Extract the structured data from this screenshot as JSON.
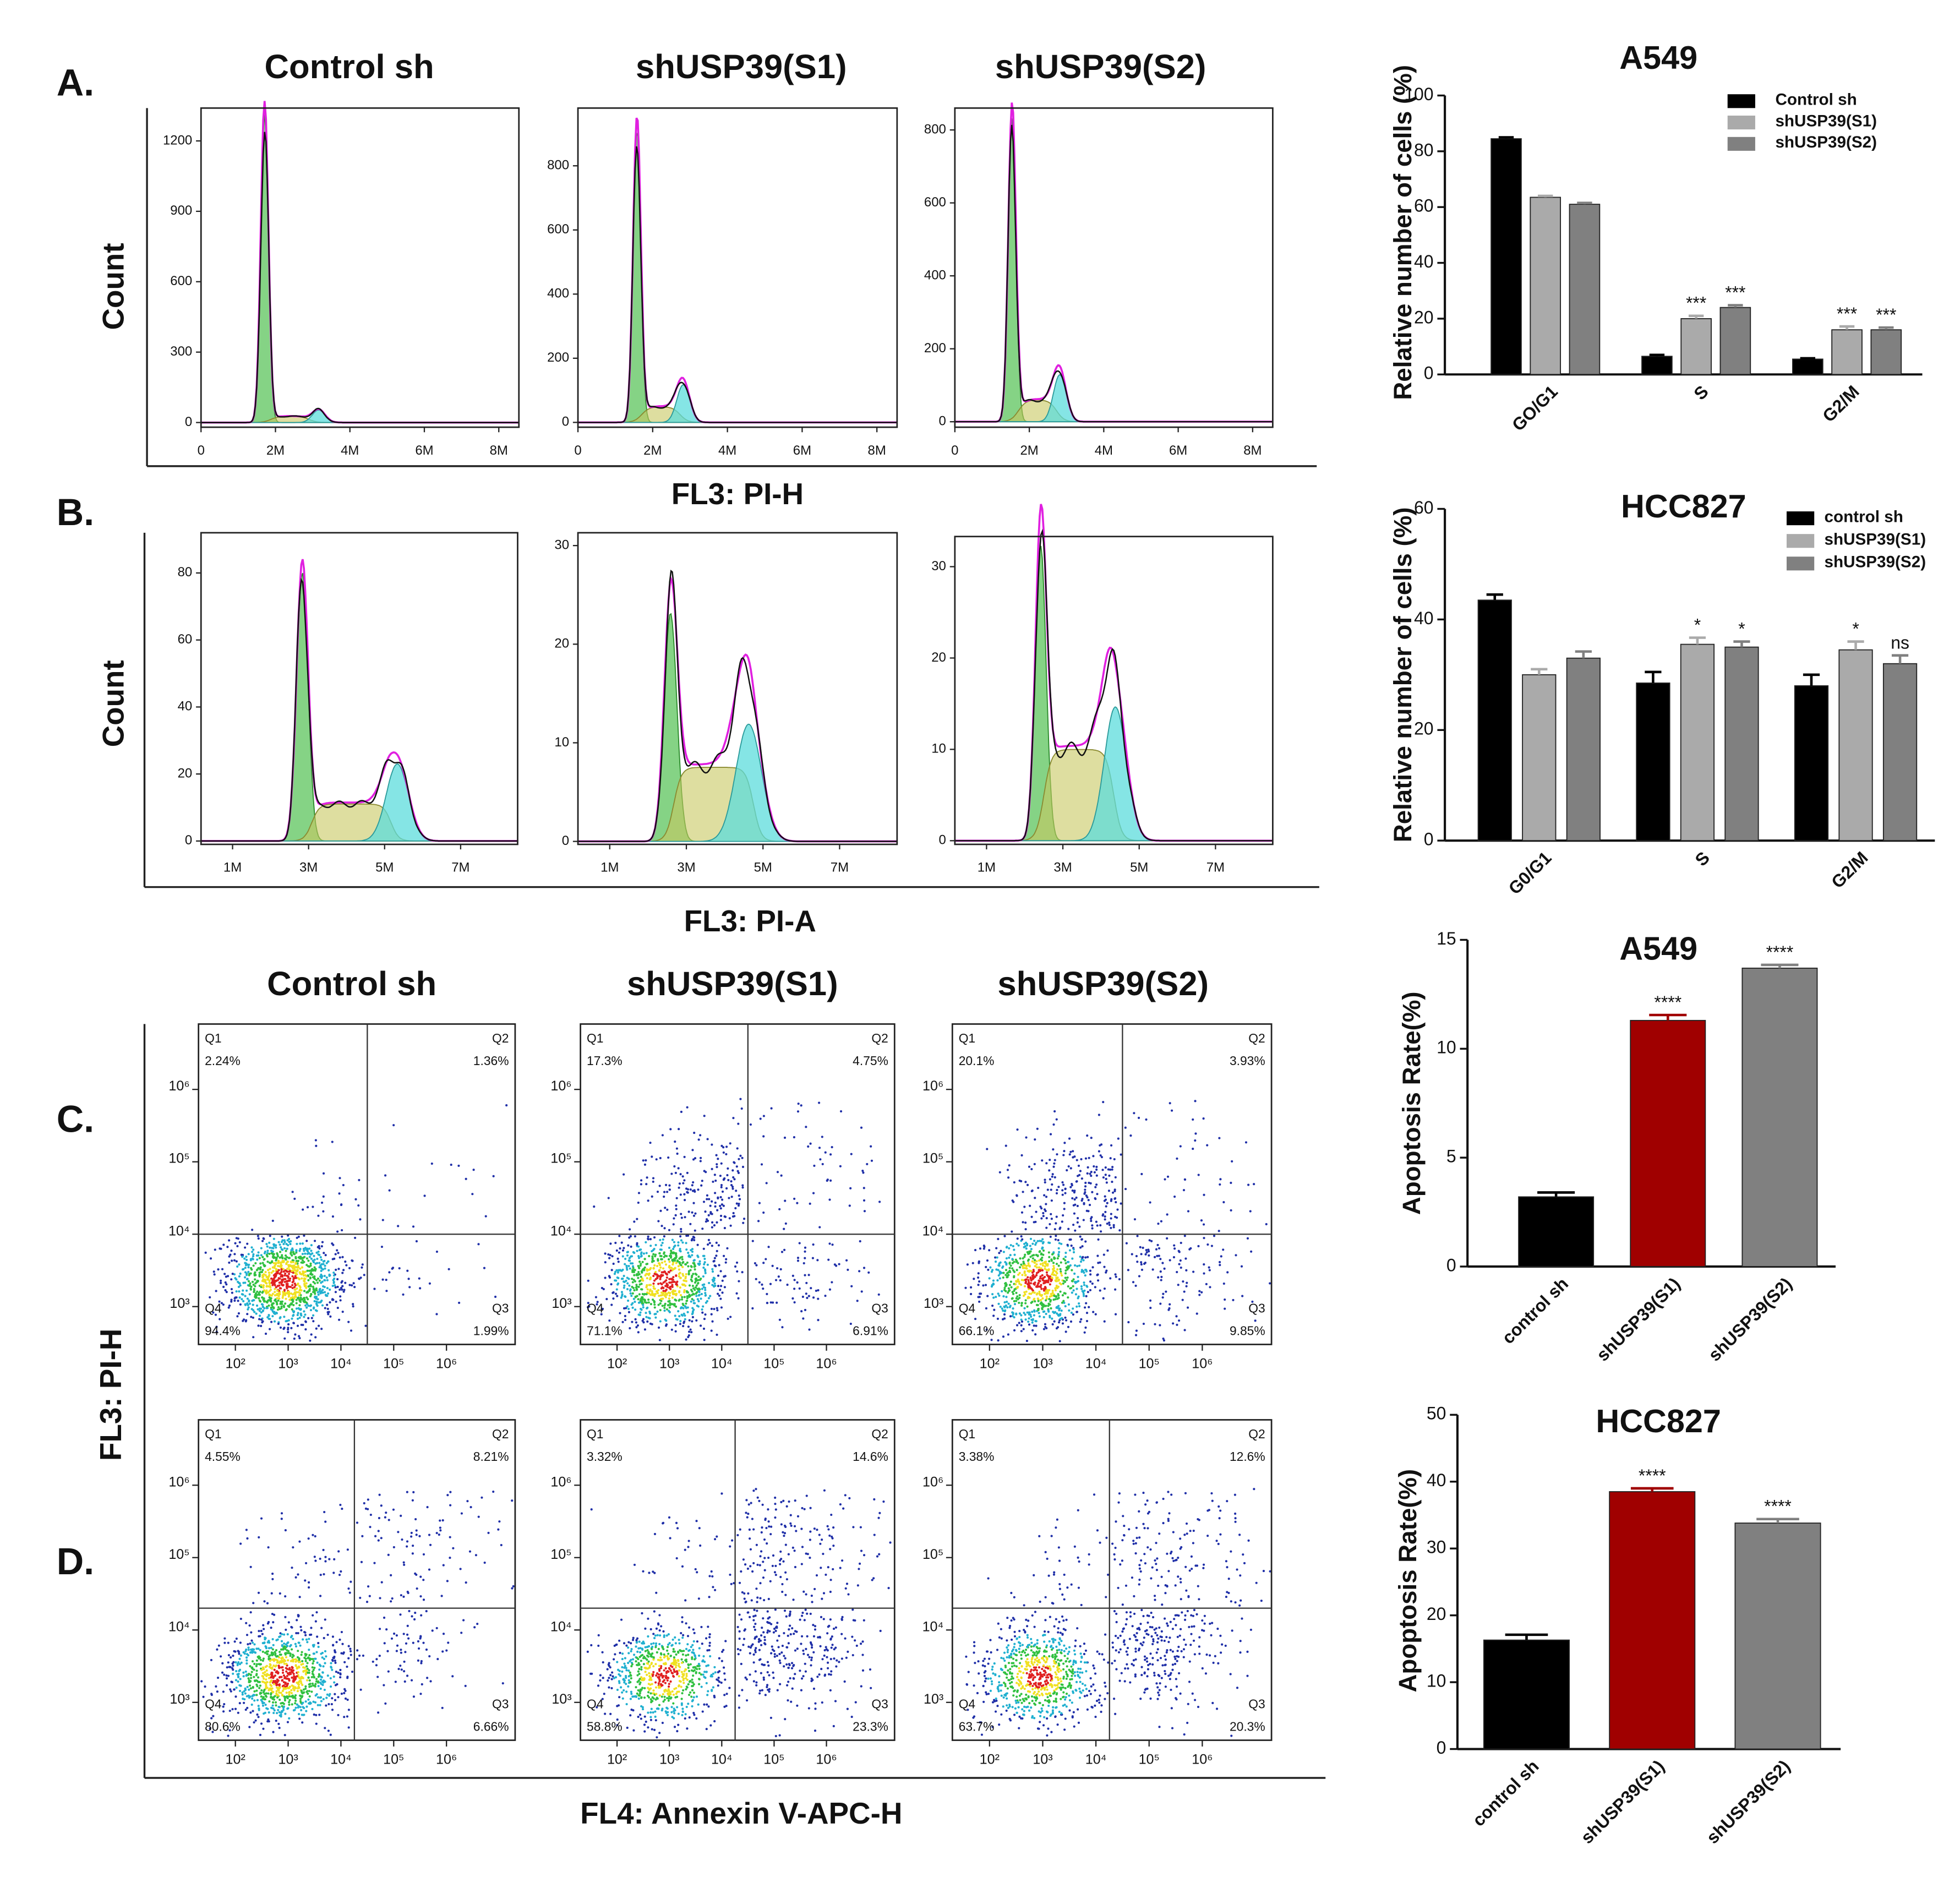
{
  "figure": {
    "panel_labels": [
      "A.",
      "B.",
      "C.",
      "D."
    ],
    "histogram_titles": [
      "Control sh",
      "shUSP39(S1)",
      "shUSP39(S2)"
    ],
    "scatter_titles": [
      "Control sh",
      "shUSP39(S1)",
      "shUSP39(S2)"
    ],
    "count_labels": [
      "Count",
      "Count"
    ],
    "x_labels": [
      "FL3: PI-H",
      "FL3: PI-A",
      "FL4: Annexin V-APC-H"
    ],
    "scatter_y_label": "FL3: PI-H"
  },
  "chart_data": [
    {
      "type": "flow-histogram",
      "xlim": [
        0,
        8540000
      ],
      "xticks": [
        0,
        {
          "value": 2000000,
          "label": "2M"
        },
        {
          "value": 4000000,
          "label": "4M"
        },
        {
          "value": 6000000,
          "label": "6M"
        },
        {
          "value": 8000000,
          "label": "8M"
        }
      ],
      "ylim": [
        -20,
        1340
      ],
      "yticks": [
        0,
        300,
        600,
        900,
        1200
      ]
    },
    {
      "type": "flow-histogram",
      "xlim": [
        0,
        8540000
      ],
      "xticks": [
        0,
        {
          "value": 2000000,
          "label": "2M"
        },
        {
          "value": 4000000,
          "label": "4M"
        },
        {
          "value": 6000000,
          "label": "6M"
        },
        {
          "value": 8000000,
          "label": "8M"
        }
      ],
      "ylim": [
        -15,
        980
      ],
      "yticks": [
        0,
        200,
        400,
        600,
        800
      ]
    },
    {
      "type": "flow-histogram",
      "xlim": [
        0,
        8540000
      ],
      "xticks": [
        0,
        {
          "value": 2000000,
          "label": "2M"
        },
        {
          "value": 4000000,
          "label": "4M"
        },
        {
          "value": 6000000,
          "label": "6M"
        },
        {
          "value": 8000000,
          "label": "8M"
        }
      ],
      "ylim": [
        -15,
        860
      ],
      "yticks": [
        0,
        200,
        400,
        600,
        800
      ]
    },
    {
      "type": "flow-histogram",
      "xlim": [
        170000,
        8500000
      ],
      "xticks": [
        {
          "value": 1000000,
          "label": "1M"
        },
        {
          "value": 3000000,
          "label": "3M"
        },
        {
          "value": 5000000,
          "label": "5M"
        },
        {
          "value": 7000000,
          "label": "7M"
        }
      ],
      "ylim": [
        -1,
        92
      ],
      "yticks": [
        0,
        20,
        40,
        60,
        80
      ]
    },
    {
      "type": "flow-histogram",
      "xlim": [
        170000,
        8500000
      ],
      "xticks": [
        {
          "value": 1000000,
          "label": "1M"
        },
        {
          "value": 3000000,
          "label": "3M"
        },
        {
          "value": 5000000,
          "label": "5M"
        },
        {
          "value": 7000000,
          "label": "7M"
        }
      ],
      "ylim": [
        -0.3,
        31.3
      ],
      "yticks": [
        0,
        10,
        20,
        30
      ]
    },
    {
      "type": "flow-histogram",
      "xlim": [
        170000,
        8500000
      ],
      "xticks": [
        {
          "value": 1000000,
          "label": "1M"
        },
        {
          "value": 3000000,
          "label": "3M"
        },
        {
          "value": 5000000,
          "label": "5M"
        },
        {
          "value": 7000000,
          "label": "7M"
        }
      ],
      "ylim": [
        -0.4,
        33.3
      ],
      "yticks": [
        0,
        10,
        20,
        30
      ]
    },
    {
      "type": "flow-scatter",
      "log_x": true,
      "log_y": true,
      "xlim": [
        20,
        20000000
      ],
      "ylim": [
        300,
        8000000
      ],
      "xticks": [
        {
          "value": 100,
          "label": "10²"
        },
        {
          "value": 1000,
          "label": "10³"
        },
        {
          "value": 10000,
          "label": "10⁴"
        },
        {
          "value": 100000,
          "label": "10⁵"
        },
        {
          "value": 1000000,
          "label": "10⁶"
        }
      ],
      "yticks": [
        {
          "value": 1000,
          "label": "10³"
        },
        {
          "value": 10000,
          "label": "10⁴"
        },
        {
          "value": 100000,
          "label": "10⁵"
        },
        {
          "value": 1000000,
          "label": "10⁶"
        }
      ],
      "gate_x": 31600,
      "gate_y": 10000,
      "quadrants": [
        "Q1",
        "Q2",
        "Q3",
        "Q4"
      ],
      "values": [
        2.24,
        1.36,
        1.99,
        94.4
      ],
      "value_labels": [
        "2.24%",
        "1.36%",
        "1.99%",
        "94.4%"
      ]
    },
    {
      "type": "flow-scatter",
      "log_x": true,
      "log_y": true,
      "xlim": [
        20,
        20000000
      ],
      "ylim": [
        300,
        8000000
      ],
      "xticks": [
        {
          "value": 100,
          "label": "10²"
        },
        {
          "value": 1000,
          "label": "10³"
        },
        {
          "value": 10000,
          "label": "10⁴"
        },
        {
          "value": 100000,
          "label": "10⁵"
        },
        {
          "value": 1000000,
          "label": "10⁶"
        }
      ],
      "yticks": [
        {
          "value": 1000,
          "label": "10³"
        },
        {
          "value": 10000,
          "label": "10⁴"
        },
        {
          "value": 100000,
          "label": "10⁵"
        },
        {
          "value": 1000000,
          "label": "10⁶"
        }
      ],
      "gate_x": 31600,
      "gate_y": 10000,
      "quadrants": [
        "Q1",
        "Q2",
        "Q3",
        "Q4"
      ],
      "values": [
        17.3,
        4.75,
        6.91,
        71.1
      ],
      "value_labels": [
        "17.3%",
        "4.75%",
        "6.91%",
        "71.1%"
      ]
    },
    {
      "type": "flow-scatter",
      "log_x": true,
      "log_y": true,
      "xlim": [
        20,
        20000000
      ],
      "ylim": [
        300,
        8000000
      ],
      "xticks": [
        {
          "value": 100,
          "label": "10²"
        },
        {
          "value": 1000,
          "label": "10³"
        },
        {
          "value": 10000,
          "label": "10⁴"
        },
        {
          "value": 100000,
          "label": "10⁵"
        },
        {
          "value": 1000000,
          "label": "10⁶"
        }
      ],
      "yticks": [
        {
          "value": 1000,
          "label": "10³"
        },
        {
          "value": 10000,
          "label": "10⁴"
        },
        {
          "value": 100000,
          "label": "10⁵"
        },
        {
          "value": 1000000,
          "label": "10⁶"
        }
      ],
      "gate_x": 31600,
      "gate_y": 10000,
      "quadrants": [
        "Q1",
        "Q2",
        "Q3",
        "Q4"
      ],
      "values": [
        20.1,
        3.93,
        9.85,
        66.1
      ],
      "value_labels": [
        "20.1%",
        "3.93%",
        "9.85%",
        "66.1%"
      ]
    },
    {
      "type": "flow-scatter",
      "log_x": true,
      "log_y": true,
      "xlim": [
        20,
        20000000
      ],
      "ylim": [
        300,
        8000000
      ],
      "xticks": [
        {
          "value": 100,
          "label": "10²"
        },
        {
          "value": 1000,
          "label": "10³"
        },
        {
          "value": 10000,
          "label": "10⁴"
        },
        {
          "value": 100000,
          "label": "10⁵"
        },
        {
          "value": 1000000,
          "label": "10⁶"
        }
      ],
      "yticks": [
        {
          "value": 1000,
          "label": "10³"
        },
        {
          "value": 10000,
          "label": "10⁴"
        },
        {
          "value": 100000,
          "label": "10⁵"
        },
        {
          "value": 1000000,
          "label": "10⁶"
        }
      ],
      "gate_x": 18000,
      "gate_y": 20000,
      "quadrants": [
        "Q1",
        "Q2",
        "Q3",
        "Q4"
      ],
      "values": [
        4.55,
        8.21,
        6.66,
        80.6
      ],
      "value_labels": [
        "4.55%",
        "8.21%",
        "6.66%",
        "80.6%"
      ]
    },
    {
      "type": "flow-scatter",
      "log_x": true,
      "log_y": true,
      "xlim": [
        20,
        20000000
      ],
      "ylim": [
        300,
        8000000
      ],
      "xticks": [
        {
          "value": 100,
          "label": "10²"
        },
        {
          "value": 1000,
          "label": "10³"
        },
        {
          "value": 10000,
          "label": "10⁴"
        },
        {
          "value": 100000,
          "label": "10⁵"
        },
        {
          "value": 1000000,
          "label": "10⁶"
        }
      ],
      "yticks": [
        {
          "value": 1000,
          "label": "10³"
        },
        {
          "value": 10000,
          "label": "10⁴"
        },
        {
          "value": 100000,
          "label": "10⁵"
        },
        {
          "value": 1000000,
          "label": "10⁶"
        }
      ],
      "gate_x": 18000,
      "gate_y": 20000,
      "quadrants": [
        "Q1",
        "Q2",
        "Q3",
        "Q4"
      ],
      "values": [
        3.32,
        14.6,
        23.3,
        58.8
      ],
      "value_labels": [
        "3.32%",
        "14.6%",
        "23.3%",
        "58.8%"
      ]
    },
    {
      "type": "flow-scatter",
      "log_x": true,
      "log_y": true,
      "xlim": [
        20,
        20000000
      ],
      "ylim": [
        300,
        8000000
      ],
      "xticks": [
        {
          "value": 100,
          "label": "10²"
        },
        {
          "value": 1000,
          "label": "10³"
        },
        {
          "value": 10000,
          "label": "10⁴"
        },
        {
          "value": 100000,
          "label": "10⁵"
        },
        {
          "value": 1000000,
          "label": "10⁶"
        }
      ],
      "yticks": [
        {
          "value": 1000,
          "label": "10³"
        },
        {
          "value": 10000,
          "label": "10⁴"
        },
        {
          "value": 100000,
          "label": "10⁵"
        },
        {
          "value": 1000000,
          "label": "10⁶"
        }
      ],
      "gate_x": 18000,
      "gate_y": 20000,
      "quadrants": [
        "Q1",
        "Q2",
        "Q3",
        "Q4"
      ],
      "values": [
        3.38,
        12.6,
        20.3,
        63.7
      ],
      "value_labels": [
        "3.38%",
        "12.6%",
        "20.3%",
        "63.7%"
      ]
    },
    {
      "type": "bar",
      "title": "A549",
      "y_label": "Relative number of cells (%)",
      "categories": [
        "GO/G1",
        "S",
        "G2/M"
      ],
      "ylim": [
        0,
        100
      ],
      "yticks": [
        0,
        20,
        40,
        60,
        80,
        100
      ],
      "series": [
        {
          "name": "Control sh",
          "color": "#000000",
          "values": [
            84.5,
            6.5,
            5.5
          ],
          "errors": [
            0.5,
            0.5,
            0.3
          ],
          "annotations": [
            null,
            null,
            null
          ]
        },
        {
          "name": "shUSP39(S1)",
          "color": "#aaaaaa",
          "values": [
            63.5,
            20,
            16
          ],
          "errors": [
            0.5,
            1,
            1.2
          ],
          "annotations": [
            null,
            "***",
            "***"
          ]
        },
        {
          "name": "shUSP39(S2)",
          "color": "#808080",
          "values": [
            61,
            24,
            16
          ],
          "errors": [
            0.5,
            0.8,
            0.8
          ],
          "annotations": [
            null,
            "***",
            "***"
          ]
        }
      ]
    },
    {
      "type": "bar",
      "title": "HCC827",
      "y_label": "Relative number of cells (%)",
      "categories": [
        "G0/G1",
        "S",
        "G2/M"
      ],
      "ylim": [
        0,
        60
      ],
      "yticks": [
        0,
        20,
        40,
        60
      ],
      "series": [
        {
          "name": "control sh",
          "color": "#000000",
          "values": [
            43.5,
            28.5,
            28
          ],
          "errors": [
            1,
            2,
            2
          ],
          "annotations": [
            null,
            null,
            null
          ]
        },
        {
          "name": "shUSP39(S1)",
          "color": "#aaaaaa",
          "values": [
            30,
            35.5,
            34.5
          ],
          "errors": [
            1,
            1.2,
            1.5
          ],
          "annotations": [
            null,
            "*",
            "*"
          ]
        },
        {
          "name": "shUSP39(S2)",
          "color": "#808080",
          "values": [
            33,
            35,
            32
          ],
          "errors": [
            1.2,
            1,
            1.5
          ],
          "annotations": [
            null,
            "*",
            "ns"
          ]
        }
      ]
    },
    {
      "type": "bar",
      "title": "A549",
      "y_label": "Apoptosis Rate(%)",
      "categories": [
        "control sh",
        "shUSP39(S1)",
        "shUSP39(S2)"
      ],
      "ylim": [
        0,
        15
      ],
      "yticks": [
        0,
        5,
        10,
        15
      ],
      "values": [
        3.2,
        11.3,
        13.7
      ],
      "errors": [
        0.2,
        0.25,
        0.15
      ],
      "colors": [
        "#000000",
        "#a00000",
        "#808080"
      ],
      "annotations": [
        null,
        "****",
        "****"
      ]
    },
    {
      "type": "bar",
      "title": "HCC827",
      "y_label": "Apoptosis Rate(%)",
      "categories": [
        "control sh",
        "shUSP39(S1)",
        "shUSP39(S2)"
      ],
      "ylim": [
        0,
        50
      ],
      "yticks": [
        0,
        10,
        20,
        30,
        40,
        50
      ],
      "values": [
        16.3,
        38.5,
        33.8
      ],
      "errors": [
        0.8,
        0.5,
        0.6
      ],
      "colors": [
        "#000000",
        "#a00000",
        "#808080"
      ],
      "annotations": [
        null,
        "****",
        "****"
      ]
    }
  ]
}
